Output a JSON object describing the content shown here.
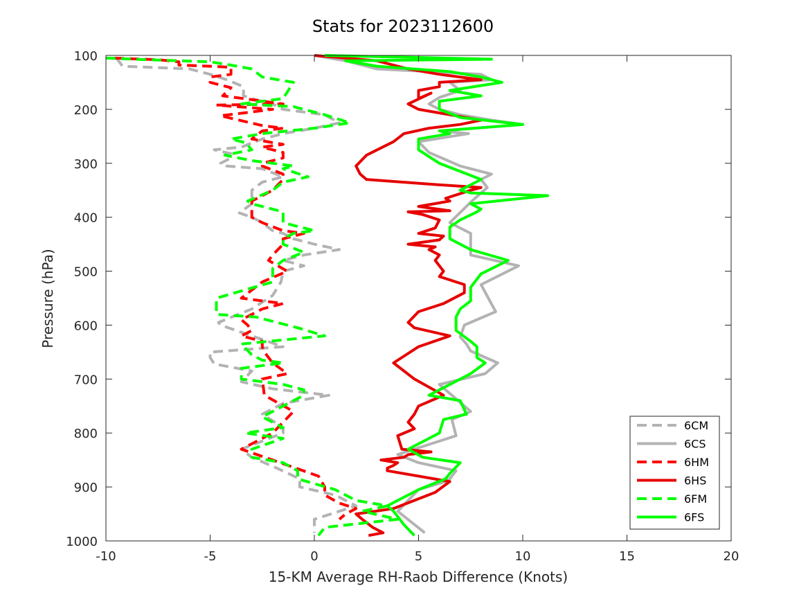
{
  "chart_data": {
    "type": "line",
    "title": "Stats for 2023112600",
    "xlabel": "15-KM Average RH-Raob Difference (Knots)",
    "ylabel": "Pressure (hPa)",
    "xlim": [
      -10,
      20
    ],
    "ylim": [
      100,
      1000
    ],
    "y_reversed": true,
    "xticks": [
      -10,
      -5,
      0,
      5,
      10,
      15,
      20
    ],
    "yticks": [
      100,
      200,
      300,
      400,
      500,
      600,
      700,
      800,
      900,
      1000
    ],
    "grid": false,
    "legend_position": "bottom-right",
    "series": [
      {
        "name": "6CM",
        "color": "#b3b3b3",
        "dash": true,
        "x": [
          -9.5,
          -9.2,
          -6,
          -5,
          -4.2,
          -3.4,
          -3.4,
          -2.8,
          -2,
          -1.5,
          0.5,
          1.2,
          0,
          -1.5,
          -2.5,
          -3.5,
          -4.8,
          -4,
          -4,
          -4.5,
          -4.2,
          -2.5,
          -1.5,
          -2.5,
          -3,
          -3,
          -3.6,
          -3,
          -2.5,
          -2,
          -1.5,
          -1,
          0,
          1.2,
          -0.5,
          -1.5,
          -0.5,
          -1.5,
          -1.6,
          -2,
          -3,
          -4.6,
          -4.5,
          -3,
          -1.5,
          -5,
          -5,
          -4.8,
          -3,
          -3.5,
          -2,
          0.7,
          -1.5,
          -2.5,
          -1.5,
          -1.5,
          -3.5,
          -3,
          -1.8,
          -0.7,
          -0.7,
          1,
          2,
          0,
          0
        ],
        "y": [
          105,
          120,
          125,
          135,
          145,
          158,
          175,
          182,
          190,
          200,
          210,
          225,
          235,
          245,
          255,
          270,
          275,
          282,
          290,
          300,
          305,
          310,
          325,
          335,
          350,
          375,
          392,
          400,
          410,
          425,
          430,
          440,
          450,
          460,
          470,
          480,
          490,
          500,
          520,
          545,
          570,
          595,
          600,
          620,
          640,
          650,
          660,
          672,
          685,
          705,
          718,
          730,
          745,
          765,
          790,
          800,
          830,
          845,
          865,
          885,
          900,
          915,
          935,
          960,
          985
        ]
      },
      {
        "name": "6CS",
        "color": "#b3b3b3",
        "dash": false,
        "x": [
          0,
          1.5,
          3,
          8,
          8.5,
          6.5,
          7,
          6,
          5.5,
          6,
          7,
          8.5,
          10,
          6,
          7.4,
          5,
          5.5,
          7,
          8.5,
          8,
          8.3,
          8,
          7.5,
          6.5,
          7.5,
          7.5,
          9.8,
          8,
          8.7,
          7.2,
          7,
          7.3,
          7.5,
          8.8,
          8.2,
          6,
          7.5,
          6.6,
          6.8,
          4,
          5,
          6.8,
          6.5,
          6.3,
          5,
          4,
          5.3
        ],
        "y": [
          100,
          110,
          125,
          135,
          145,
          150,
          165,
          178,
          190,
          200,
          210,
          220,
          228,
          240,
          245,
          260,
          280,
          305,
          320,
          330,
          345,
          355,
          372,
          410,
          430,
          470,
          490,
          525,
          575,
          600,
          622,
          635,
          648,
          670,
          690,
          710,
          760,
          775,
          805,
          840,
          855,
          870,
          885,
          890,
          905,
          945,
          985
        ]
      },
      {
        "name": "6HM",
        "color": "#ff0000",
        "dash": true,
        "x": [
          -9.6,
          -7.5,
          -6.5,
          -6.5,
          -5,
          -4,
          -4,
          -5,
          -5,
          -4,
          -4.4,
          -3,
          -1.5,
          -4.7,
          -2,
          -4.5,
          -2.5,
          -1.5,
          -2.5,
          -3,
          -1.5,
          -2.5,
          -1.5,
          -1.5,
          -2.5,
          -2.5,
          -1.5,
          -1.5,
          -2,
          -3,
          -3,
          -2.5,
          -1.5,
          -0.5,
          -1.5,
          -1.5,
          -2,
          -2.2,
          -1.3,
          -2.5,
          -3.5,
          -1.5,
          -2.5,
          -3.5,
          -3.2,
          -3,
          -3.5,
          -2.5,
          -2.5,
          -2.4,
          -2,
          -1.3,
          -2.5,
          -2.4,
          -1,
          -1.5,
          -2,
          -2.5,
          -3.5,
          -2,
          0.2,
          0.5,
          0.5,
          1.2,
          2,
          1.5,
          1.2
        ],
        "y": [
          105,
          108,
          112,
          118,
          120,
          122,
          135,
          140,
          150,
          160,
          175,
          182,
          190,
          192,
          200,
          212,
          230,
          235,
          240,
          255,
          265,
          270,
          280,
          290,
          300,
          305,
          320,
          330,
          350,
          370,
          400,
          410,
          425,
          430,
          440,
          450,
          470,
          480,
          500,
          520,
          550,
          560,
          570,
          590,
          600,
          610,
          620,
          630,
          640,
          650,
          670,
          690,
          700,
          730,
          760,
          780,
          800,
          810,
          830,
          850,
          880,
          900,
          915,
          930,
          940,
          950,
          960
        ]
      },
      {
        "name": "6HS",
        "color": "#e60000",
        "dash": false,
        "x": [
          0,
          3,
          4.5,
          6,
          8,
          6,
          6,
          5,
          5,
          5.6,
          4.5,
          5,
          6.5,
          8,
          7,
          5.5,
          4.3,
          3.8,
          2.5,
          2,
          2.2,
          2.5,
          6,
          8,
          7.5,
          6.3,
          6.5,
          5,
          6.5,
          4.5,
          5.2,
          6,
          5.8,
          5,
          6.2,
          6,
          4.5,
          5.8,
          5.5,
          6,
          5.8,
          6.2,
          6,
          7.2,
          7.2,
          6.2,
          5,
          4.5,
          4.8,
          6.5,
          5,
          3.8,
          4.8,
          6.2,
          5,
          4.8,
          4.5,
          4.8,
          4,
          4.2,
          5.6,
          4.5,
          4.3,
          3.2,
          4,
          3.8,
          3.5,
          3.5,
          6.5,
          5.8,
          3.8,
          2,
          2.3,
          2.8,
          3.3,
          2.6
        ],
        "y": [
          100,
          110,
          125,
          135,
          145,
          150,
          158,
          165,
          180,
          170,
          190,
          200,
          210,
          220,
          228,
          235,
          245,
          260,
          285,
          305,
          320,
          330,
          340,
          345,
          350,
          365,
          370,
          380,
          388,
          390,
          395,
          405,
          420,
          430,
          435,
          442,
          450,
          455,
          460,
          470,
          480,
          500,
          510,
          525,
          540,
          560,
          575,
          595,
          605,
          620,
          640,
          670,
          700,
          730,
          750,
          765,
          780,
          792,
          805,
          830,
          835,
          840,
          845,
          850,
          855,
          860,
          865,
          870,
          890,
          910,
          940,
          950,
          960,
          975,
          985,
          990
        ]
      },
      {
        "name": "6FM",
        "color": "#00ff00",
        "dash": true,
        "x": [
          -10,
          -8,
          -5,
          -4,
          -3,
          -2.5,
          -1,
          -1.5,
          -3.5,
          -1,
          0.5,
          1.7,
          0,
          -2.5,
          -4,
          -3.3,
          -3,
          -4.3,
          -3,
          -1,
          -1.5,
          -0.3,
          -1.5,
          -2,
          -3.2,
          -3,
          -1.5,
          -1.5,
          0,
          -1,
          -1.5,
          -1.5,
          -0.5,
          -1.5,
          -2,
          -2,
          -4.7,
          -4.7,
          -2.8,
          -0.8,
          0.5,
          -3.5,
          -3,
          -2.5,
          -1.5,
          -3.5,
          -3.5,
          -1.5,
          -0.5,
          -0.5,
          -1.5,
          -2.5,
          -1.5,
          -3.3,
          -1.5,
          -3,
          -3,
          -1.5,
          -0.8,
          -0.8,
          1,
          2,
          3.5,
          2.3,
          4,
          0.5,
          0.2
        ],
        "y": [
          105,
          108,
          112,
          118,
          125,
          140,
          150,
          180,
          190,
          195,
          210,
          225,
          235,
          245,
          255,
          262,
          275,
          285,
          295,
          305,
          310,
          325,
          335,
          350,
          370,
          375,
          390,
          410,
          425,
          430,
          440,
          450,
          465,
          480,
          495,
          520,
          550,
          580,
          585,
          605,
          620,
          635,
          655,
          665,
          670,
          680,
          700,
          710,
          720,
          730,
          750,
          770,
          790,
          800,
          810,
          830,
          845,
          855,
          870,
          885,
          905,
          925,
          935,
          945,
          960,
          975,
          990
        ]
      },
      {
        "name": "6FS",
        "color": "#00ff00",
        "dash": false,
        "x": [
          0.5,
          8.5,
          1.5,
          3,
          6.5,
          8,
          9,
          6.5,
          8,
          6,
          6,
          7,
          10,
          6,
          6.5,
          5,
          5,
          6,
          8,
          7,
          7.5,
          11.2,
          7.5,
          8,
          7.8,
          7,
          6.5,
          6.5,
          7.5,
          9.3,
          8,
          7.5,
          7.5,
          7,
          6.8,
          6.8,
          7.5,
          7.8,
          7.8,
          8.2,
          7.5,
          6.5,
          5.5,
          7,
          7.3,
          6.2,
          6,
          5.5,
          4.5,
          5.2,
          7,
          6.5,
          6.3,
          5,
          3.5,
          3.8,
          4,
          4.3,
          4.8
        ],
        "y": [
          100,
          107,
          110,
          120,
          130,
          140,
          150,
          165,
          175,
          185,
          200,
          215,
          228,
          240,
          245,
          255,
          275,
          300,
          330,
          350,
          355,
          360,
          375,
          385,
          390,
          405,
          418,
          440,
          460,
          480,
          505,
          530,
          555,
          570,
          585,
          610,
          630,
          640,
          660,
          670,
          690,
          710,
          730,
          740,
          765,
          775,
          800,
          810,
          830,
          845,
          855,
          875,
          885,
          905,
          935,
          945,
          955,
          970,
          990
        ]
      }
    ]
  }
}
